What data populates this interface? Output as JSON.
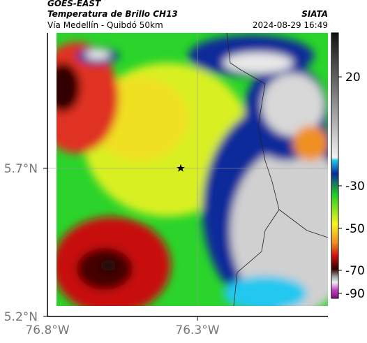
{
  "header": {
    "satellite": "GOES-EAST",
    "product": "Temperatura de Brillo CH13",
    "source": "SIATA",
    "route": "Vía Medellín - Quibdó 50km",
    "timestamp": "2024-08-29 16:49"
  },
  "x_ticks": [
    "76.8°W",
    "76.3°W"
  ],
  "y_ticks": [
    "5.7°N",
    "5.2°N"
  ],
  "colorbar": {
    "ticks": [
      "20",
      "-30",
      "-50",
      "-70",
      "-90"
    ]
  }
}
